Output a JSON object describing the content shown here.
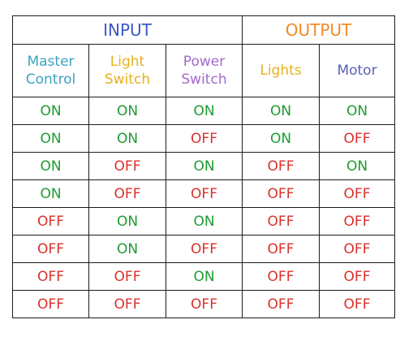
{
  "table": {
    "groups": [
      {
        "label": "INPUT",
        "color": "#3c59c6"
      },
      {
        "label": "OUTPUT",
        "color": "#f08a24"
      }
    ],
    "columns": [
      {
        "line1": "Master",
        "line2": "Control",
        "color": "#3aa3c4"
      },
      {
        "line1": "Light",
        "line2": "Switch",
        "color": "#e8b11b"
      },
      {
        "line1": "Power",
        "line2": "Switch",
        "color": "#a26bd0"
      },
      {
        "line1": "Lights",
        "line2": "",
        "color": "#e8b11b"
      },
      {
        "line1": "Motor",
        "line2": "",
        "color": "#5960b5"
      }
    ],
    "rows": [
      [
        "ON",
        "ON",
        "ON",
        "ON",
        "ON"
      ],
      [
        "ON",
        "ON",
        "OFF",
        "ON",
        "OFF"
      ],
      [
        "ON",
        "OFF",
        "ON",
        "OFF",
        "ON"
      ],
      [
        "ON",
        "OFF",
        "OFF",
        "OFF",
        "OFF"
      ],
      [
        "OFF",
        "ON",
        "ON",
        "OFF",
        "OFF"
      ],
      [
        "OFF",
        "ON",
        "OFF",
        "OFF",
        "OFF"
      ],
      [
        "OFF",
        "OFF",
        "ON",
        "OFF",
        "OFF"
      ],
      [
        "OFF",
        "OFF",
        "OFF",
        "OFF",
        "OFF"
      ]
    ],
    "value_colors": {
      "ON": "#1e9b31",
      "OFF": "#d9312b"
    }
  }
}
